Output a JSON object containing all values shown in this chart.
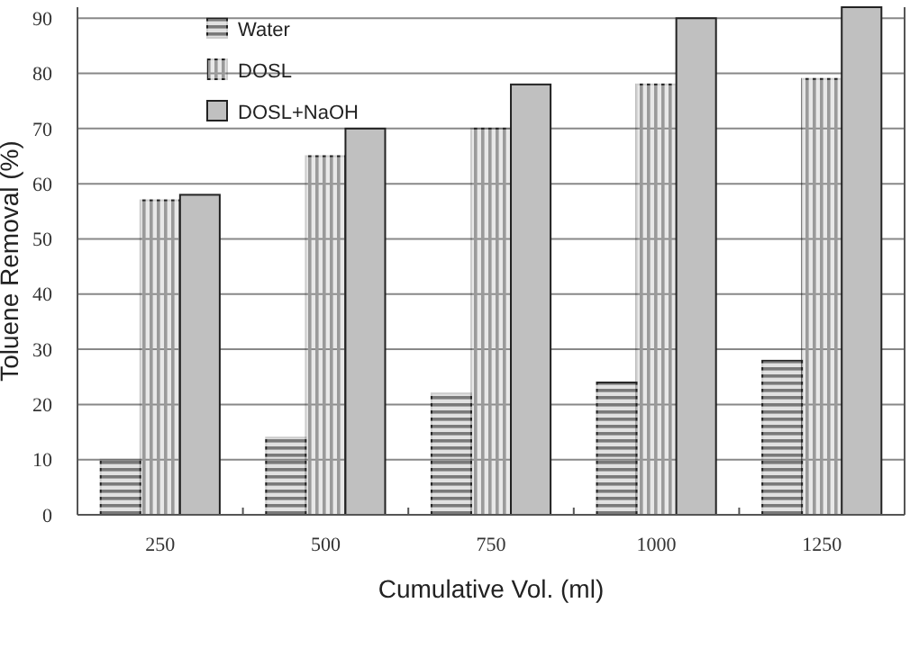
{
  "chart_data": {
    "type": "bar",
    "xlabel": "Cumulative Vol. (ml)",
    "ylabel": "Toluene Removal (%)",
    "categories": [
      "250",
      "500",
      "750",
      "1000",
      "1250"
    ],
    "series": [
      {
        "name": "Water",
        "color": "#7a7a7a",
        "values": [
          10,
          14,
          22,
          24,
          28
        ]
      },
      {
        "name": "DOSL",
        "color": "#9a9a9a",
        "values": [
          57,
          65,
          70,
          78,
          79
        ]
      },
      {
        "name": "DOSL+NaOH",
        "color": "#c0c0c0",
        "values": [
          58,
          70,
          78,
          90,
          92
        ]
      }
    ],
    "ylim": [
      0,
      92
    ],
    "yticks": [
      0,
      10,
      20,
      30,
      40,
      50,
      60,
      70,
      80,
      90
    ],
    "grid": "y",
    "legend": "top left"
  }
}
